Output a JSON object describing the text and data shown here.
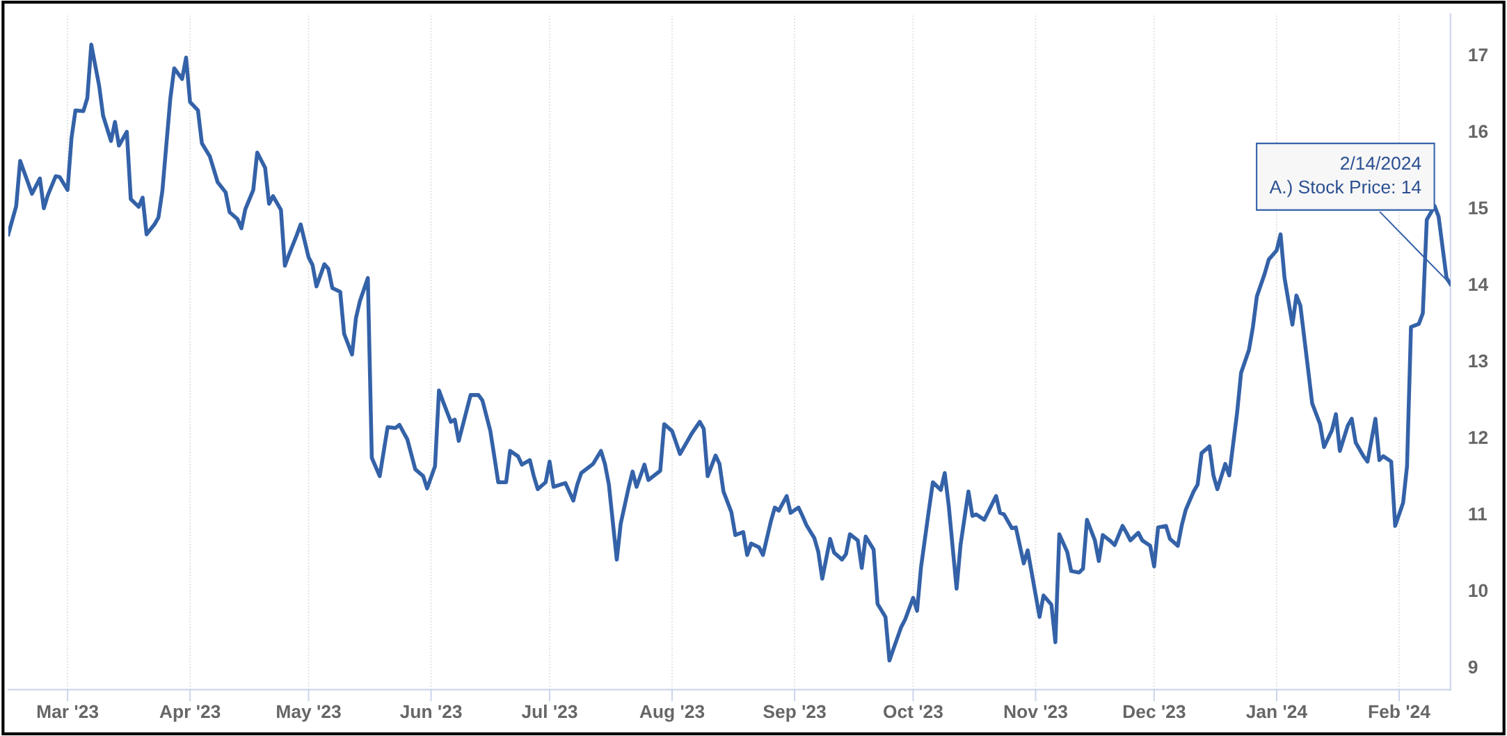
{
  "chart_data": {
    "type": "line",
    "grid": "x",
    "line_style": "solid",
    "xlim": [
      "2023-02-14",
      "2024-02-14"
    ],
    "xticks": [
      {
        "value": "2023-03-01",
        "label": "Mar '23"
      },
      {
        "value": "2023-04-01",
        "label": "Apr '23"
      },
      {
        "value": "2023-05-01",
        "label": "May '23"
      },
      {
        "value": "2023-06-01",
        "label": "Jun '23"
      },
      {
        "value": "2023-07-01",
        "label": "Jul '23"
      },
      {
        "value": "2023-08-01",
        "label": "Aug '23"
      },
      {
        "value": "2023-09-01",
        "label": "Sep '23"
      },
      {
        "value": "2023-10-01",
        "label": "Oct '23"
      },
      {
        "value": "2023-11-01",
        "label": "Nov '23"
      },
      {
        "value": "2023-12-01",
        "label": "Dec '23"
      },
      {
        "value": "2024-01-01",
        "label": "Jan '24"
      },
      {
        "value": "2024-02-01",
        "label": "Feb '24"
      }
    ],
    "ylim": [
      8.7,
      17.53
    ],
    "yticks": [
      9,
      10,
      11,
      12,
      13,
      14,
      15,
      16,
      17
    ],
    "annotations": [
      {
        "text": "2/14/2024\nA.) Stock Price: 14",
        "x": "2024-02-14",
        "y": 14
      }
    ],
    "series": [
      {
        "color": "#3462a8",
        "x": [
          "2023-02-14",
          "2023-02-16",
          "2023-02-17",
          "2023-02-20",
          "2023-02-22",
          "2023-02-23",
          "2023-02-24",
          "2023-02-26",
          "2023-02-27",
          "2023-03-01",
          "2023-03-02",
          "2023-03-03",
          "2023-03-05",
          "2023-03-06",
          "2023-03-07",
          "2023-03-09",
          "2023-03-10",
          "2023-03-12",
          "2023-03-13",
          "2023-03-14",
          "2023-03-16",
          "2023-03-17",
          "2023-03-19",
          "2023-03-20",
          "2023-03-21",
          "2023-03-23",
          "2023-03-24",
          "2023-03-25",
          "2023-03-27",
          "2023-03-28",
          "2023-03-30",
          "2023-03-31",
          "2023-04-01",
          "2023-04-03",
          "2023-04-04",
          "2023-04-06",
          "2023-04-07",
          "2023-04-08",
          "2023-04-10",
          "2023-04-11",
          "2023-04-13",
          "2023-04-14",
          "2023-04-15",
          "2023-04-17",
          "2023-04-18",
          "2023-04-20",
          "2023-04-21",
          "2023-04-22",
          "2023-04-24",
          "2023-04-25",
          "2023-04-26",
          "2023-04-28",
          "2023-04-29",
          "2023-05-01",
          "2023-05-02",
          "2023-05-03",
          "2023-05-05",
          "2023-05-06",
          "2023-05-07",
          "2023-05-09",
          "2023-05-10",
          "2023-05-12",
          "2023-05-13",
          "2023-05-14",
          "2023-05-16",
          "2023-05-17",
          "2023-05-19",
          "2023-05-21",
          "2023-05-23",
          "2023-05-24",
          "2023-05-26",
          "2023-05-28",
          "2023-05-30",
          "2023-05-31",
          "2023-06-02",
          "2023-06-03",
          "2023-06-04",
          "2023-06-06",
          "2023-06-07",
          "2023-06-08",
          "2023-06-11",
          "2023-06-13",
          "2023-06-14",
          "2023-06-16",
          "2023-06-17",
          "2023-06-18",
          "2023-06-20",
          "2023-06-21",
          "2023-06-23",
          "2023-06-24",
          "2023-06-26",
          "2023-06-27",
          "2023-06-28",
          "2023-06-30",
          "2023-07-01",
          "2023-07-02",
          "2023-07-05",
          "2023-07-07",
          "2023-07-08",
          "2023-07-09",
          "2023-07-11",
          "2023-07-12",
          "2023-07-14",
          "2023-07-15",
          "2023-07-16",
          "2023-07-18",
          "2023-07-19",
          "2023-07-21",
          "2023-07-22",
          "2023-07-23",
          "2023-07-25",
          "2023-07-26",
          "2023-07-29",
          "2023-07-30",
          "2023-08-01",
          "2023-08-03",
          "2023-08-05",
          "2023-08-06",
          "2023-08-08",
          "2023-08-09",
          "2023-08-10",
          "2023-08-12",
          "2023-08-13",
          "2023-08-14",
          "2023-08-16",
          "2023-08-17",
          "2023-08-19",
          "2023-08-20",
          "2023-08-21",
          "2023-08-23",
          "2023-08-24",
          "2023-08-26",
          "2023-08-27",
          "2023-08-28",
          "2023-08-30",
          "2023-08-31",
          "2023-09-02",
          "2023-09-03",
          "2023-09-04",
          "2023-09-06",
          "2023-09-07",
          "2023-09-08",
          "2023-09-10",
          "2023-09-11",
          "2023-09-13",
          "2023-09-14",
          "2023-09-15",
          "2023-09-17",
          "2023-09-18",
          "2023-09-19",
          "2023-09-21",
          "2023-09-22",
          "2023-09-24",
          "2023-09-25",
          "2023-09-26",
          "2023-09-28",
          "2023-09-29",
          "2023-10-01",
          "2023-10-02",
          "2023-10-03",
          "2023-10-05",
          "2023-10-06",
          "2023-10-08",
          "2023-10-09",
          "2023-10-10",
          "2023-10-12",
          "2023-10-13",
          "2023-10-15",
          "2023-10-16",
          "2023-10-17",
          "2023-10-19",
          "2023-10-22",
          "2023-10-23",
          "2023-10-24",
          "2023-10-26",
          "2023-10-27",
          "2023-10-29",
          "2023-10-30",
          "2023-11-02",
          "2023-11-03",
          "2023-11-05",
          "2023-11-06",
          "2023-11-07",
          "2023-11-09",
          "2023-11-10",
          "2023-11-12",
          "2023-11-13",
          "2023-11-14",
          "2023-11-16",
          "2023-11-17",
          "2023-11-18",
          "2023-11-20",
          "2023-11-21",
          "2023-11-23",
          "2023-11-24",
          "2023-11-25",
          "2023-11-27",
          "2023-11-28",
          "2023-11-30",
          "2023-12-01",
          "2023-12-02",
          "2023-12-04",
          "2023-12-05",
          "2023-12-07",
          "2023-12-08",
          "2023-12-09",
          "2023-12-11",
          "2023-12-12",
          "2023-12-13",
          "2023-12-15",
          "2023-12-16",
          "2023-12-17",
          "2023-12-19",
          "2023-12-20",
          "2023-12-22",
          "2023-12-23",
          "2023-12-25",
          "2023-12-26",
          "2023-12-27",
          "2023-12-29",
          "2023-12-30",
          "2024-01-01",
          "2024-01-02",
          "2024-01-03",
          "2024-01-05",
          "2024-01-06",
          "2024-01-07",
          "2024-01-09",
          "2024-01-10",
          "2024-01-12",
          "2024-01-13",
          "2024-01-15",
          "2024-01-16",
          "2024-01-17",
          "2024-01-19",
          "2024-01-20",
          "2024-01-21",
          "2024-01-23",
          "2024-01-24",
          "2024-01-26",
          "2024-01-27",
          "2024-01-28",
          "2024-01-30",
          "2024-01-31",
          "2024-02-02",
          "2024-02-03",
          "2024-02-04",
          "2024-02-06",
          "2024-02-07",
          "2024-02-08",
          "2024-02-10",
          "2024-02-11",
          "2024-02-13",
          "2024-02-14"
        ],
        "values": [
          14.65,
          15.02,
          15.61,
          15.18,
          15.38,
          14.99,
          15.16,
          15.41,
          15.4,
          15.23,
          15.91,
          16.27,
          16.26,
          16.43,
          17.13,
          16.59,
          16.2,
          15.87,
          16.12,
          15.81,
          15.99,
          15.11,
          15.01,
          15.13,
          14.65,
          14.78,
          14.87,
          15.22,
          16.42,
          16.82,
          16.68,
          16.96,
          16.38,
          16.27,
          15.84,
          15.67,
          15.5,
          15.33,
          15.2,
          14.94,
          14.85,
          14.73,
          14.98,
          15.23,
          15.72,
          15.52,
          15.05,
          15.15,
          14.97,
          14.24,
          14.38,
          14.64,
          14.78,
          14.35,
          14.25,
          13.97,
          14.26,
          14.2,
          13.95,
          13.9,
          13.35,
          13.08,
          13.56,
          13.78,
          14.08,
          11.73,
          11.49,
          12.13,
          12.12,
          12.16,
          11.97,
          11.58,
          11.49,
          11.33,
          11.62,
          12.61,
          12.47,
          12.2,
          12.23,
          11.95,
          12.55,
          12.55,
          12.48,
          12.08,
          11.75,
          11.41,
          11.41,
          11.82,
          11.75,
          11.64,
          11.7,
          11.49,
          11.32,
          11.41,
          11.68,
          11.35,
          11.4,
          11.17,
          11.38,
          11.53,
          11.61,
          11.65,
          11.82,
          11.65,
          11.38,
          10.4,
          10.87,
          11.34,
          11.55,
          11.35,
          11.64,
          11.44,
          11.56,
          12.17,
          12.08,
          11.78,
          11.96,
          12.05,
          12.2,
          12.11,
          11.49,
          11.76,
          11.65,
          11.29,
          11.02,
          10.72,
          10.76,
          10.46,
          10.61,
          10.56,
          10.46,
          10.9,
          11.08,
          11.04,
          11.23,
          11.01,
          11.08,
          10.97,
          10.85,
          10.68,
          10.5,
          10.15,
          10.67,
          10.49,
          10.4,
          10.47,
          10.73,
          10.65,
          10.29,
          10.7,
          10.53,
          9.82,
          9.65,
          9.08,
          9.23,
          9.52,
          9.62,
          9.9,
          9.73,
          10.3,
          11.05,
          11.41,
          11.31,
          11.53,
          11.11,
          10.02,
          10.59,
          11.29,
          10.97,
          10.99,
          10.92,
          11.23,
          11.01,
          10.99,
          10.81,
          10.82,
          10.35,
          10.52,
          9.65,
          9.93,
          9.81,
          9.32,
          10.73,
          10.5,
          10.25,
          10.23,
          10.28,
          10.92,
          10.65,
          10.38,
          10.72,
          10.64,
          10.59,
          10.84,
          10.75,
          10.65,
          10.75,
          10.65,
          10.58,
          10.31,
          10.82,
          10.84,
          10.67,
          10.58,
          10.85,
          11.05,
          11.29,
          11.38,
          11.79,
          11.88,
          11.5,
          11.32,
          11.65,
          11.5,
          12.32,
          12.84,
          13.14,
          13.44,
          13.84,
          14.14,
          14.32,
          14.44,
          14.65,
          14.08,
          13.47,
          13.85,
          13.72,
          12.87,
          12.44,
          12.17,
          11.87,
          12.09,
          12.3,
          11.82,
          12.15,
          12.24,
          11.93,
          11.75,
          11.68,
          12.24,
          11.7,
          11.75,
          11.68,
          10.84,
          11.14,
          11.62,
          13.44,
          13.48,
          13.62,
          14.84,
          15.02,
          14.88,
          14.08,
          14
        ]
      }
    ]
  }
}
